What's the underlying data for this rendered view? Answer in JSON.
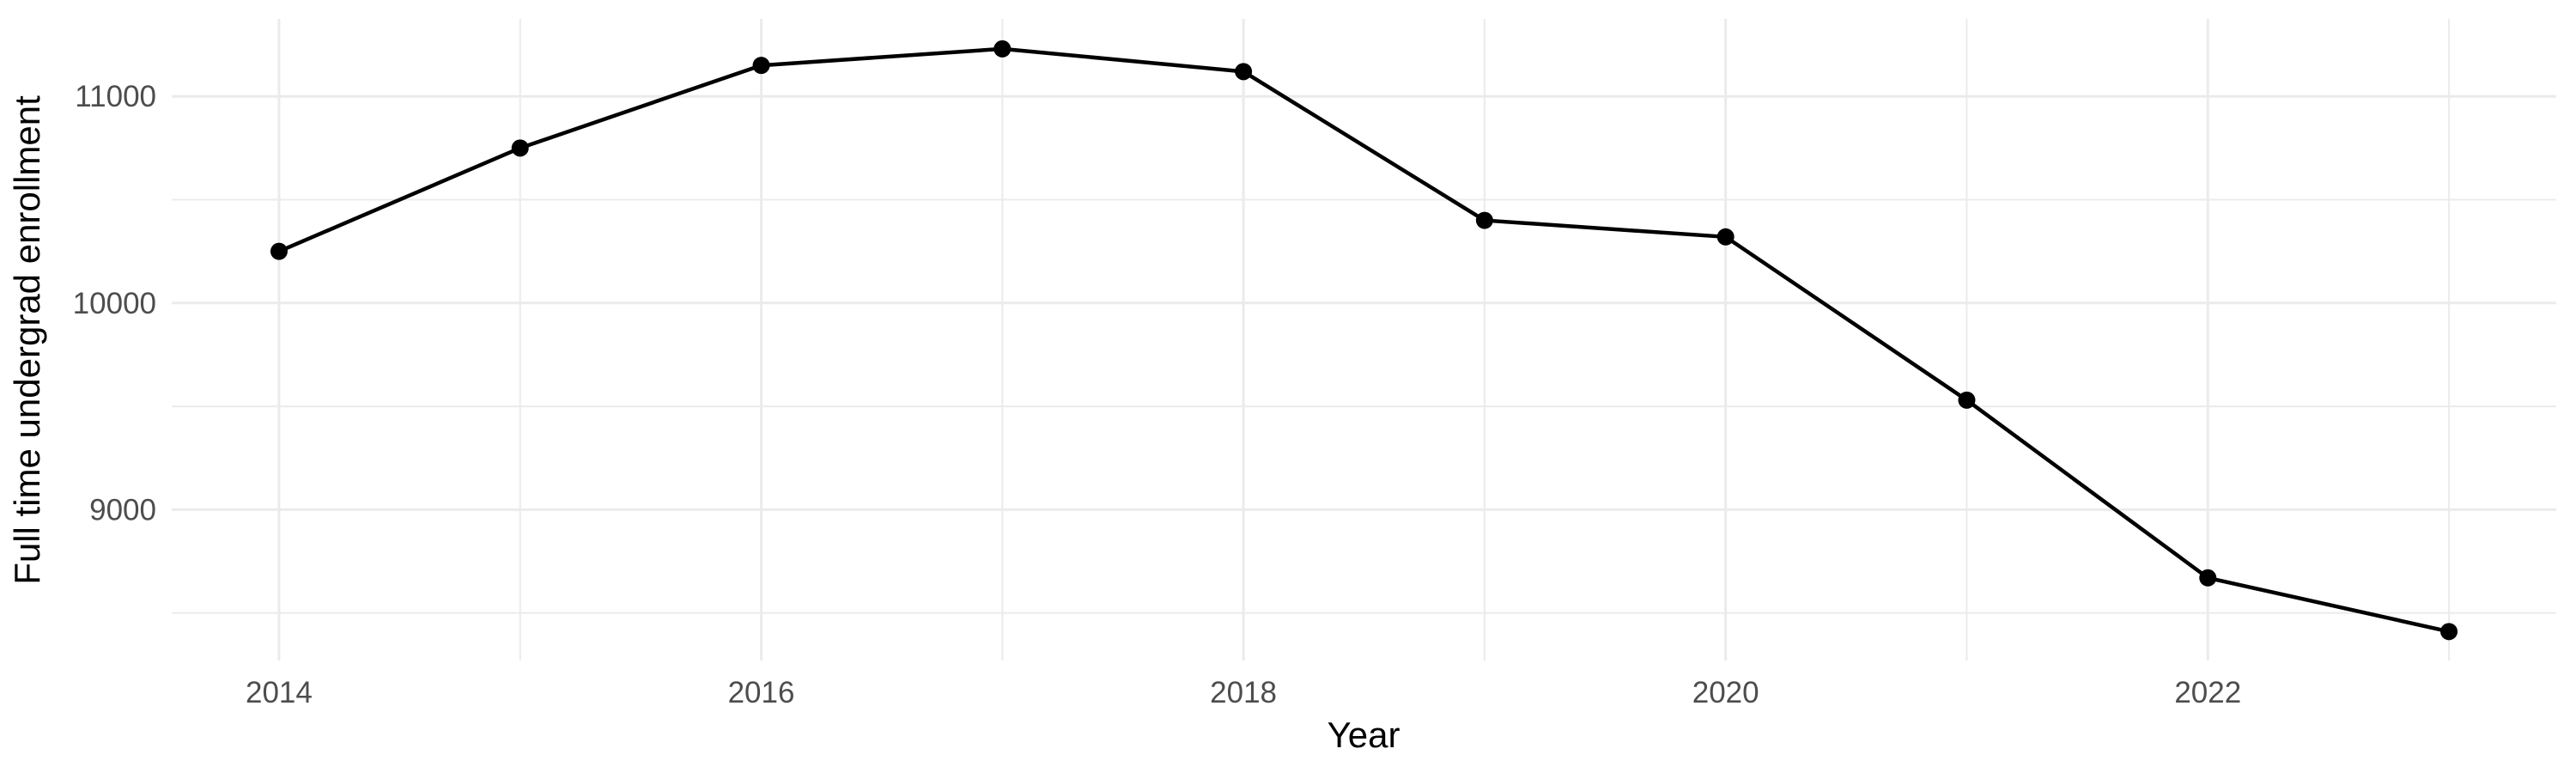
{
  "chart_data": {
    "type": "line",
    "title": "",
    "xlabel": "Year",
    "ylabel": "Full time undergrad enrollment",
    "x": [
      2014,
      2015,
      2016,
      2017,
      2018,
      2019,
      2020,
      2021,
      2022,
      2023
    ],
    "series": [
      {
        "name": "Full time undergrad enrollment",
        "values": [
          10250,
          10750,
          11150,
          11230,
          11120,
          10400,
          10320,
          9530,
          8670,
          8410
        ]
      }
    ],
    "x_ticks": {
      "major": [
        2014,
        2016,
        2018,
        2020,
        2022
      ],
      "minor": [
        2015,
        2017,
        2019,
        2021,
        2023
      ]
    },
    "y_ticks": {
      "major": [
        9000,
        10000,
        11000
      ],
      "minor": [
        8500,
        9500,
        10500
      ]
    },
    "x_tick_labels": [
      "2014",
      "2016",
      "2018",
      "2020",
      "2022"
    ],
    "y_tick_labels": [
      "9000",
      "10000",
      "11000"
    ],
    "xlim": [
      2013.555,
      2023.445
    ],
    "ylim": [
      8270,
      11375
    ],
    "grid": true,
    "legend": false,
    "colors": {
      "line": "#000000",
      "point": "#000000",
      "grid": "#ebebeb",
      "tick_text": "#4d4d4d",
      "axis_title": "#000000",
      "background": "#ffffff"
    }
  }
}
